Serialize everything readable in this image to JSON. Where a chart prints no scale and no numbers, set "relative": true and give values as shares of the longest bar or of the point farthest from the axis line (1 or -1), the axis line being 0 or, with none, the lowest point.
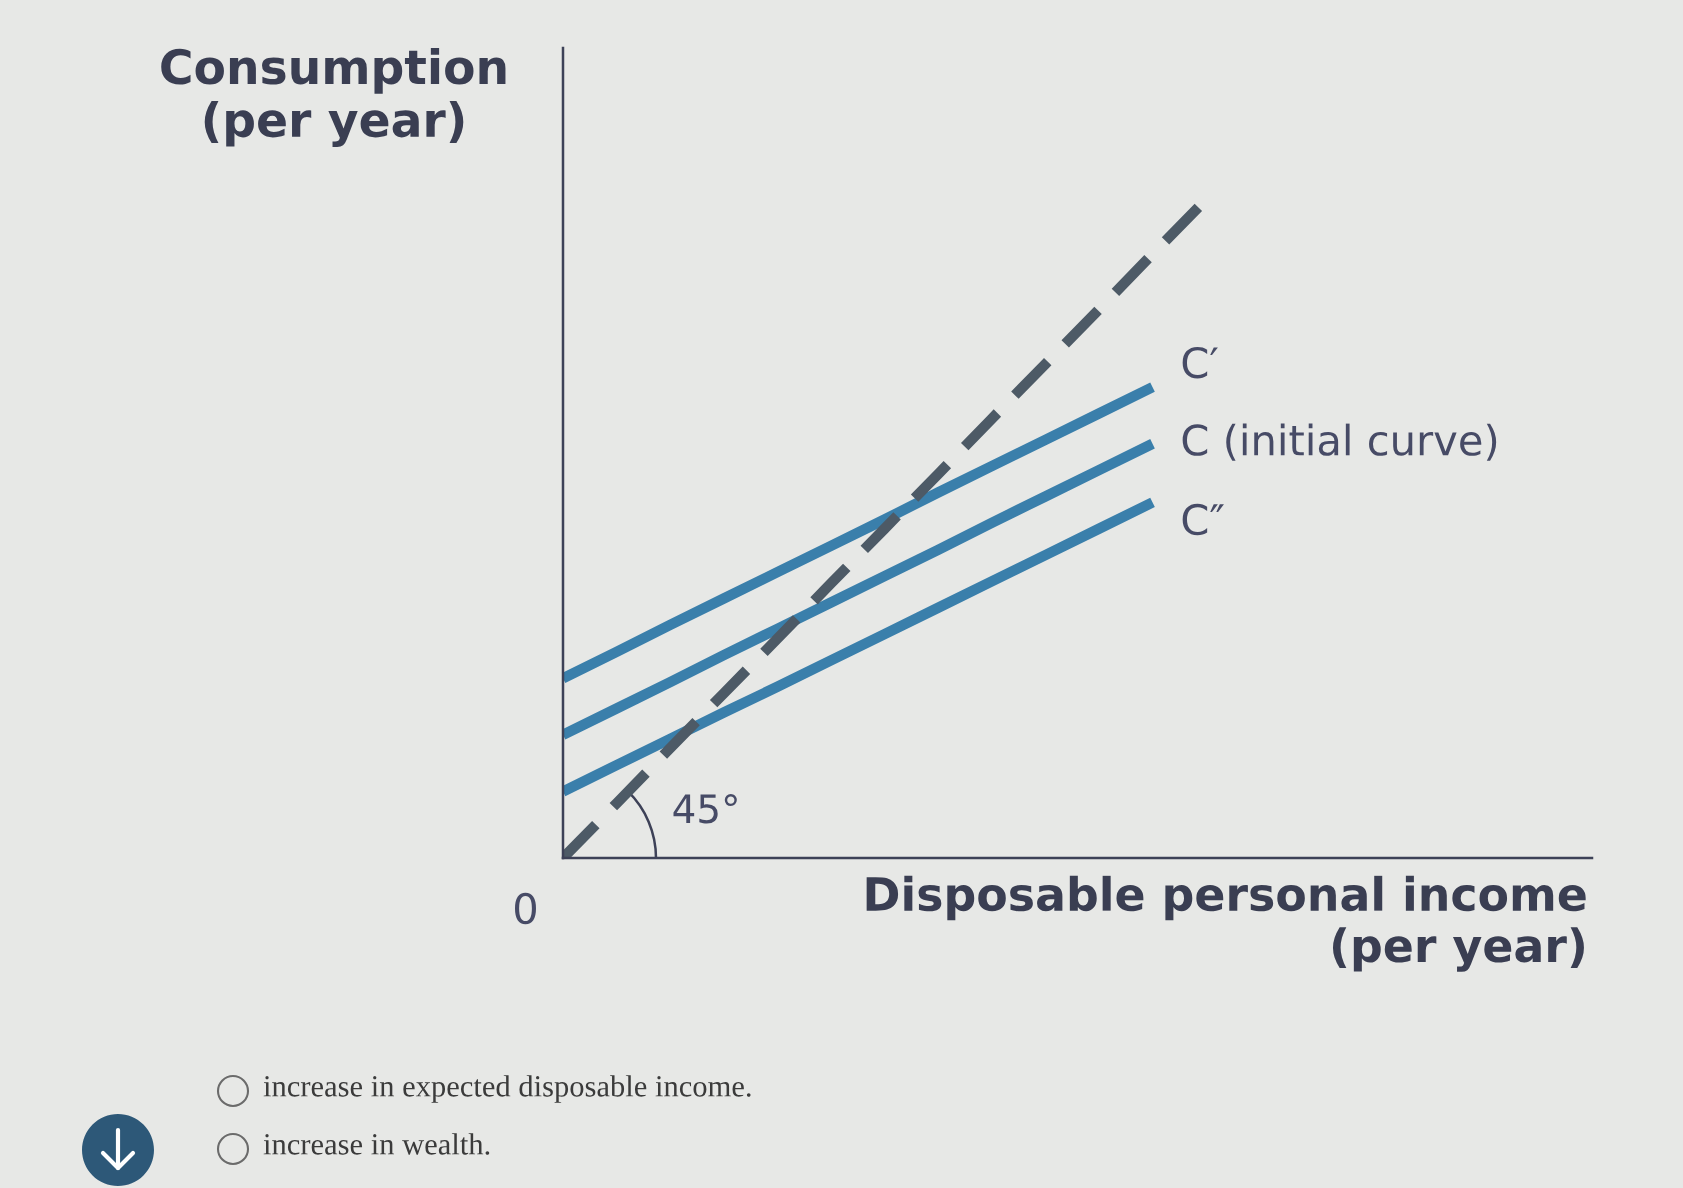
{
  "chart_data": {
    "type": "line",
    "relative": true,
    "ylabel": "Consumption\n(per year)",
    "xlabel": "Disposable personal income\n(per year)",
    "categories": [
      null,
      null,
      null,
      null,
      null,
      null,
      null,
      null,
      null,
      null,
      null,
      null,
      null
    ],
    "series": [
      {
        "name": "C′",
        "color": "#3a7fab",
        "values": [
          0.273,
          0.313,
          0.354,
          0.394,
          0.434,
          0.474,
          0.514,
          0.555,
          0.595,
          0.635,
          0.675,
          0.715,
          null
        ]
      },
      {
        "name": "C (initial curve)",
        "color": "#3a7fab",
        "values": [
          0.187,
          0.227,
          0.267,
          0.308,
          0.348,
          0.388,
          0.428,
          0.468,
          0.509,
          0.549,
          0.589,
          0.629,
          null
        ]
      },
      {
        "name": "C″",
        "color": "#3a7fab",
        "values": [
          0.101,
          0.141,
          0.181,
          0.221,
          0.26,
          0.3,
          0.34,
          0.38,
          0.42,
          0.46,
          0.5,
          0.54,
          null
        ]
      },
      {
        "color": "#4d5a66",
        "line_style": "dashed",
        "values": [
          0,
          0.083,
          0.167,
          0.25,
          0.333,
          0.417,
          0.5,
          0.583,
          0.667,
          0.75,
          0.833,
          0.917,
          1
        ]
      }
    ],
    "annotations": [
      "0",
      "45°",
      "increase in expected disposable income.",
      "increase in wealth."
    ]
  }
}
